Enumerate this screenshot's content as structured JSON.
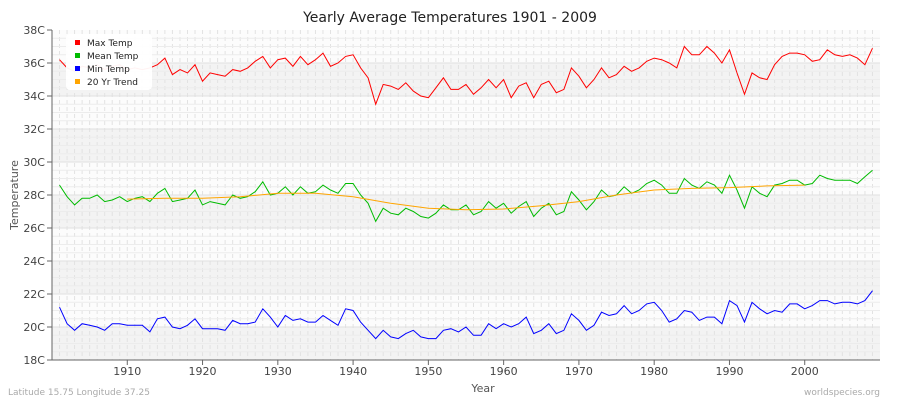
{
  "chart_data": {
    "type": "line",
    "title": "Yearly Average Temperatures 1901 - 2009",
    "xlabel": "Year",
    "ylabel": "Temperature",
    "xlim": [
      1900,
      2010
    ],
    "ylim": [
      18,
      38
    ],
    "yticks": [
      "18C",
      "20C",
      "22C",
      "24C",
      "26C",
      "28C",
      "30C",
      "32C",
      "34C",
      "36C",
      "38C"
    ],
    "xticks": [
      "1910",
      "1920",
      "1930",
      "1940",
      "1950",
      "1960",
      "1970",
      "1980",
      "1990",
      "2000"
    ],
    "legend": {
      "placement": "top-left",
      "entries": [
        "Max Temp",
        "Mean Temp",
        "Min Temp",
        "20 Yr Trend"
      ]
    },
    "x_start": 1901,
    "series": [
      {
        "name": "Max Temp",
        "color": "#ff0000",
        "values": [
          36.2,
          35.7,
          35.5,
          35.8,
          35.7,
          35.9,
          35.6,
          35.8,
          35.9,
          35.6,
          35.7,
          35.6,
          35.7,
          35.9,
          36.3,
          35.3,
          35.6,
          35.4,
          35.9,
          34.9,
          35.4,
          35.3,
          35.2,
          35.6,
          35.5,
          35.7,
          36.1,
          36.4,
          35.7,
          36.2,
          36.3,
          35.8,
          36.4,
          35.9,
          36.2,
          36.6,
          35.8,
          36.0,
          36.4,
          36.5,
          35.7,
          35.1,
          33.5,
          34.7,
          34.6,
          34.4,
          34.8,
          34.3,
          34.0,
          33.9,
          34.5,
          35.1,
          34.4,
          34.4,
          34.7,
          34.1,
          34.5,
          35.0,
          34.5,
          35.0,
          33.9,
          34.6,
          34.8,
          33.9,
          34.7,
          34.9,
          34.2,
          34.4,
          35.7,
          35.2,
          34.5,
          35.0,
          35.7,
          35.1,
          35.3,
          35.8,
          35.5,
          35.7,
          36.1,
          36.3,
          36.2,
          36.0,
          35.7,
          37.0,
          36.5,
          36.5,
          37.0,
          36.6,
          36.0,
          36.8,
          35.4,
          34.1,
          35.4,
          35.1,
          35.0,
          35.9,
          36.4,
          36.6,
          36.6,
          36.5,
          36.1,
          36.2,
          36.8,
          36.5,
          36.4,
          36.5,
          36.3,
          35.9,
          36.9
        ]
      },
      {
        "name": "Mean Temp",
        "color": "#00bb00",
        "values": [
          28.6,
          27.9,
          27.4,
          27.8,
          27.8,
          28.0,
          27.6,
          27.7,
          27.9,
          27.6,
          27.8,
          27.9,
          27.6,
          28.1,
          28.4,
          27.6,
          27.7,
          27.8,
          28.3,
          27.4,
          27.6,
          27.5,
          27.4,
          28.0,
          27.8,
          27.9,
          28.2,
          28.8,
          28.0,
          28.1,
          28.5,
          28.0,
          28.5,
          28.1,
          28.2,
          28.6,
          28.3,
          28.1,
          28.7,
          28.7,
          28.0,
          27.5,
          26.4,
          27.2,
          26.9,
          26.8,
          27.2,
          27.0,
          26.7,
          26.6,
          26.9,
          27.4,
          27.1,
          27.1,
          27.4,
          26.8,
          27.0,
          27.6,
          27.2,
          27.5,
          26.9,
          27.3,
          27.6,
          26.7,
          27.2,
          27.5,
          26.8,
          27.0,
          28.2,
          27.7,
          27.1,
          27.6,
          28.3,
          27.9,
          28.0,
          28.5,
          28.1,
          28.3,
          28.7,
          28.9,
          28.6,
          28.1,
          28.1,
          29.0,
          28.6,
          28.4,
          28.8,
          28.6,
          28.1,
          29.2,
          28.3,
          27.2,
          28.5,
          28.1,
          27.9,
          28.6,
          28.7,
          28.9,
          28.9,
          28.6,
          28.7,
          29.2,
          29.0,
          28.9,
          28.9,
          28.9,
          28.7,
          29.1,
          29.5
        ]
      },
      {
        "name": "Min Temp",
        "color": "#0000ff",
        "values": [
          21.2,
          20.2,
          19.8,
          20.2,
          20.1,
          20.0,
          19.8,
          20.2,
          20.2,
          20.1,
          20.1,
          20.1,
          19.7,
          20.5,
          20.6,
          20.0,
          19.9,
          20.1,
          20.5,
          19.9,
          19.9,
          19.9,
          19.8,
          20.4,
          20.2,
          20.2,
          20.3,
          21.1,
          20.6,
          20.0,
          20.7,
          20.4,
          20.5,
          20.3,
          20.3,
          20.7,
          20.4,
          20.1,
          21.1,
          21.0,
          20.3,
          19.8,
          19.3,
          19.8,
          19.4,
          19.3,
          19.6,
          19.8,
          19.4,
          19.3,
          19.3,
          19.8,
          19.9,
          19.7,
          20.0,
          19.5,
          19.5,
          20.2,
          19.9,
          20.2,
          20.0,
          20.2,
          20.6,
          19.6,
          19.8,
          20.2,
          19.6,
          19.8,
          20.8,
          20.4,
          19.8,
          20.1,
          20.9,
          20.7,
          20.8,
          21.3,
          20.8,
          21.0,
          21.4,
          21.5,
          21.0,
          20.3,
          20.5,
          21.0,
          20.9,
          20.4,
          20.6,
          20.6,
          20.2,
          21.6,
          21.3,
          20.3,
          21.5,
          21.1,
          20.8,
          21.0,
          20.9,
          21.4,
          21.4,
          21.1,
          21.3,
          21.6,
          21.6,
          21.4,
          21.5,
          21.5,
          21.4,
          21.6,
          22.2
        ]
      },
      {
        "name": "20 Yr Trend",
        "color": "#ffa500",
        "x": [
          1910,
          1915,
          1920,
          1925,
          1930,
          1935,
          1940,
          1945,
          1950,
          1955,
          1960,
          1965,
          1970,
          1975,
          1980,
          1985,
          1990,
          1995,
          2000
        ],
        "values": [
          27.75,
          27.8,
          27.8,
          27.9,
          28.1,
          28.1,
          27.9,
          27.5,
          27.2,
          27.1,
          27.15,
          27.35,
          27.6,
          28.0,
          28.3,
          28.4,
          28.45,
          28.55,
          28.6
        ]
      }
    ]
  },
  "footer": {
    "left": "Latitude 15.75 Longitude 37.25",
    "right": "worldspecies.org"
  }
}
